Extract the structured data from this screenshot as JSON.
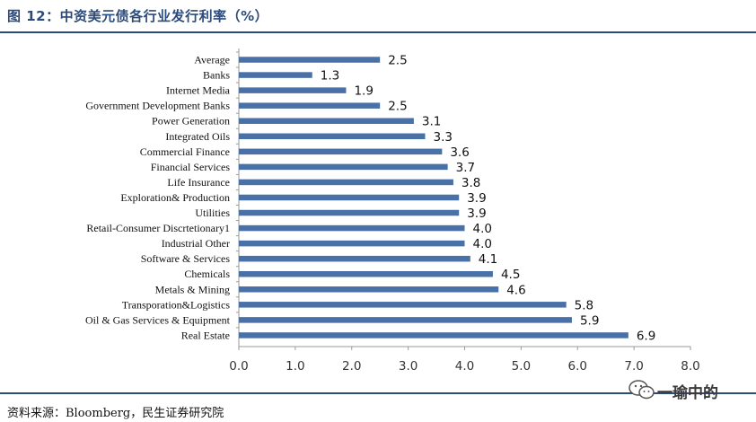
{
  "header": {
    "title": "图 12：中资美元债各行业发行利率（%）"
  },
  "footer": {
    "source": "资料来源：Bloomberg，民生证券研究院"
  },
  "watermark": {
    "text": "一瑜中的"
  },
  "colors": {
    "bar": "#4a70a8",
    "rule": "#2c4a7a",
    "axis": "#9a9a9a"
  },
  "chart_data": {
    "type": "bar",
    "orientation": "horizontal",
    "categories": [
      "Average",
      "Banks",
      "Internet Media",
      "Government Development Banks",
      "Power Generation",
      "Integrated Oils",
      "Commercial Finance",
      "Financial Services",
      "Life Insurance",
      "Exploration& Production",
      "Utilities",
      "Retail-Consumer Discrtetionary1",
      "Industrial Other",
      "Software & Services",
      "Chemicals",
      "Metals & Mining",
      "Transporation&Logistics",
      "Oil & Gas Services & Equipment",
      "Real Estate"
    ],
    "values": [
      2.5,
      1.3,
      1.9,
      2.5,
      3.1,
      3.3,
      3.6,
      3.7,
      3.8,
      3.9,
      3.9,
      4.0,
      4.0,
      4.1,
      4.5,
      4.6,
      5.8,
      5.9,
      6.9
    ],
    "value_labels": [
      "2.5",
      "1.3",
      "1.9",
      "2.5",
      "3.1",
      "3.3",
      "3.6",
      "3.7",
      "3.8",
      "3.9",
      "3.9",
      "4.0",
      "4.0",
      "4.1",
      "4.5",
      "4.6",
      "5.8",
      "5.9",
      "6.9"
    ],
    "xlim": [
      0,
      8
    ],
    "xticks": [
      "0.0",
      "1.0",
      "2.0",
      "3.0",
      "4.0",
      "5.0",
      "6.0",
      "7.0",
      "8.0"
    ],
    "title": "",
    "xlabel": "",
    "ylabel": ""
  }
}
